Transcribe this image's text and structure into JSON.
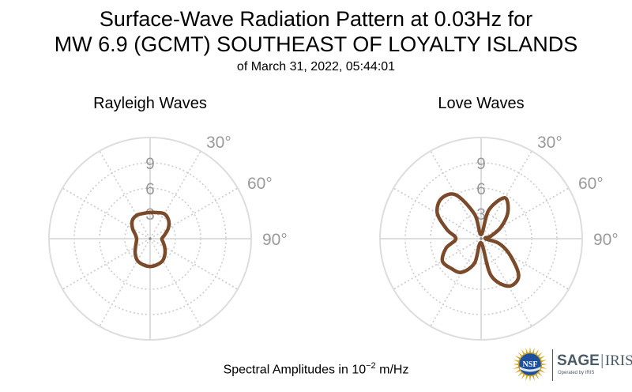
{
  "header": {
    "title_line1": "Surface-Wave Radiation Pattern at 0.03Hz for",
    "title_line2": "MW 6.9 (GCMT) SOUTHEAST OF LOYALTY ISLANDS",
    "subtitle": "of March 31, 2022, 05:44:01"
  },
  "footer": {
    "label_prefix": "Spectral Amplitudes in 10",
    "label_exponent": "−2",
    "label_unit": "m/Hz"
  },
  "logos": {
    "nsf": "NSF",
    "sage": "SAGE",
    "iris": "IRIS",
    "operated_by": "Operated by IRIS"
  },
  "chart_data": [
    {
      "type": "polar",
      "title": "Rayleigh Waves",
      "radial_ticks": [
        3,
        6,
        9
      ],
      "radial_tick_labels": [
        "3",
        "6",
        "9"
      ],
      "radial_range": [
        0,
        12
      ],
      "angle_tick_labels": [
        "30°",
        "60°",
        "90°"
      ],
      "angle_ticks_deg": [
        30,
        60,
        90
      ],
      "direction": "clockwise from north",
      "grid": true,
      "line_color": "#7a4a2a",
      "series": [
        {
          "azimuth_deg": [
            0,
            15,
            30,
            45,
            60,
            75,
            90,
            105,
            120,
            135,
            150,
            165,
            180,
            195,
            210,
            225,
            240,
            255,
            270,
            285,
            300,
            315,
            330,
            345
          ],
          "amplitude": [
            3.1,
            3.2,
            3.4,
            3.1,
            2.5,
            1.8,
            1.4,
            1.6,
            2.0,
            2.5,
            3.0,
            3.2,
            3.3,
            3.2,
            3.0,
            2.5,
            2.0,
            1.7,
            1.6,
            1.8,
            2.4,
            3.0,
            3.2,
            3.1
          ]
        }
      ]
    },
    {
      "type": "polar",
      "title": "Love Waves",
      "radial_ticks": [
        3,
        6,
        9
      ],
      "radial_tick_labels": [
        "3",
        "6",
        "9"
      ],
      "radial_range": [
        0,
        12
      ],
      "angle_tick_labels": [
        "30°",
        "60°",
        "90°"
      ],
      "angle_ticks_deg": [
        30,
        60,
        90
      ],
      "direction": "clockwise from north",
      "grid": true,
      "line_color": "#7a4a2a",
      "series": [
        {
          "azimuth_deg": [
            0,
            15,
            30,
            45,
            60,
            75,
            90,
            105,
            120,
            135,
            150,
            165,
            180,
            195,
            210,
            225,
            240,
            255,
            270,
            285,
            300,
            315,
            330,
            345
          ],
          "amplitude": [
            0.5,
            3.5,
            5.6,
            4.5,
            2.7,
            1.2,
            0.5,
            2.2,
            4.0,
            6.3,
            6.5,
            4.5,
            0.5,
            3.0,
            4.6,
            5.0,
            5.3,
            4.3,
            3.0,
            4.2,
            6.0,
            6.7,
            6.0,
            3.0
          ]
        }
      ]
    }
  ]
}
